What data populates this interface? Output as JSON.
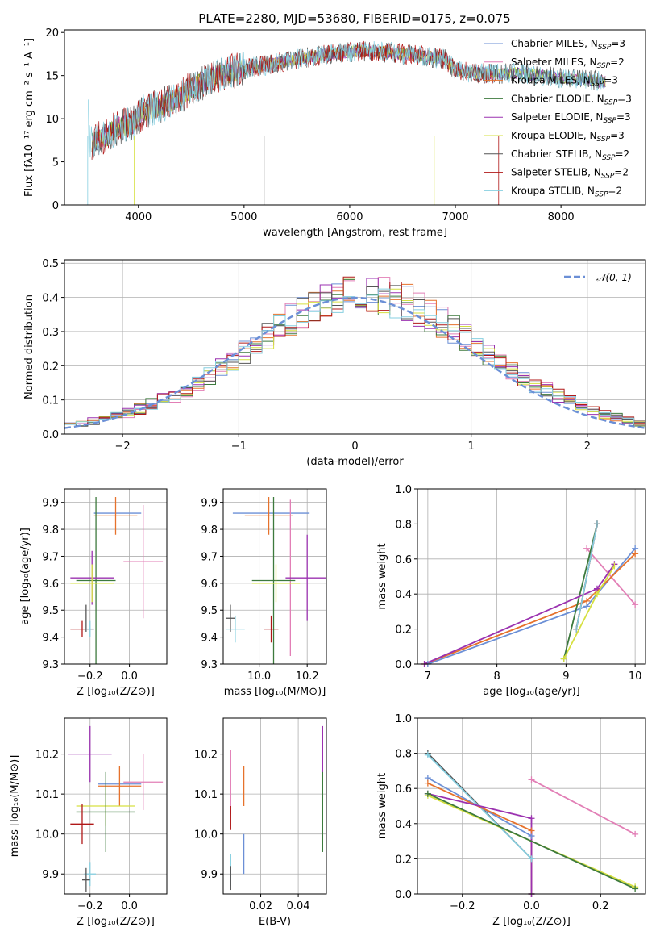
{
  "title": "PLATE=2280, MJD=53680, FIBERID=0175, z=0.075",
  "colors": {
    "Chabrier MILES": "#6b8fd6",
    "Salpeter MILES": "#e27fb6",
    "Kroupa MILES": "#e6722c",
    "Chabrier ELODIE": "#3d7a3d",
    "Salpeter ELODIE": "#9b32b0",
    "Kroupa ELODIE": "#d6e040",
    "Chabrier STELIB": "#555555",
    "Salpeter STELIB": "#b01818",
    "Kroupa STELIB": "#86cfe0",
    "gauss": "#6b8fd6",
    "grid": "#b0b0b0"
  },
  "legend": {
    "entries": [
      {
        "pre": "Chabrier MILES, N",
        "sub": "SSP",
        "post": "=3",
        "color_key": "Chabrier MILES"
      },
      {
        "pre": "Salpeter MILES, N",
        "sub": "SSP",
        "post": "=2",
        "color_key": "Salpeter MILES"
      },
      {
        "pre": "Kroupa MILES, N",
        "sub": "SSP",
        "post": "=3",
        "color_key": "Kroupa MILES"
      },
      {
        "pre": "Chabrier ELODIE, N",
        "sub": "SSP",
        "post": "=3",
        "color_key": "Chabrier ELODIE"
      },
      {
        "pre": "Salpeter ELODIE, N",
        "sub": "SSP",
        "post": "=3",
        "color_key": "Salpeter ELODIE"
      },
      {
        "pre": "Kroupa ELODIE, N",
        "sub": "SSP",
        "post": "=3",
        "color_key": "Kroupa ELODIE"
      },
      {
        "pre": "Chabrier STELIB, N",
        "sub": "SSP",
        "post": "=2",
        "color_key": "Chabrier STELIB"
      },
      {
        "pre": "Salpeter STELIB, N",
        "sub": "SSP",
        "post": "=2",
        "color_key": "Salpeter STELIB"
      },
      {
        "pre": "Kroupa STELIB, N",
        "sub": "SSP",
        "post": "=2",
        "color_key": "Kroupa STELIB"
      }
    ],
    "gauss_label": "𝒩(0, 1)"
  },
  "chart_data": [
    {
      "id": "spectrum",
      "type": "line",
      "xlabel": "wavelength [Angstrom, rest frame]",
      "ylabel": "Flux [fλ10⁻¹⁷ erg cm⁻² s⁻¹ A⁻¹]",
      "xlim": [
        3300,
        8800
      ],
      "ylim": [
        0,
        20.3
      ],
      "xticks": [
        4000,
        5000,
        6000,
        7000,
        8000
      ],
      "yticks": [
        0,
        5,
        10,
        15,
        20
      ],
      "grid": false,
      "legend_position": "upper right",
      "spectrum_shape": [
        [
          3530,
          7.2
        ],
        [
          3700,
          8.0
        ],
        [
          3800,
          9.0
        ],
        [
          3950,
          9.5
        ],
        [
          4050,
          10.8
        ],
        [
          4200,
          11.5
        ],
        [
          4400,
          12.5
        ],
        [
          4500,
          13.5
        ],
        [
          4700,
          14.8
        ],
        [
          4900,
          15.5
        ],
        [
          5100,
          16.0
        ],
        [
          5300,
          16.4
        ],
        [
          5500,
          16.9
        ],
        [
          5700,
          17.3
        ],
        [
          5900,
          17.6
        ],
        [
          6100,
          17.8
        ],
        [
          6300,
          17.8
        ],
        [
          6500,
          17.5
        ],
        [
          6700,
          17.3
        ],
        [
          6900,
          16.9
        ],
        [
          7000,
          15.6
        ],
        [
          7200,
          15.3
        ],
        [
          7400,
          15.2
        ],
        [
          7600,
          15.3
        ],
        [
          7800,
          15.0
        ],
        [
          8000,
          14.7
        ],
        [
          8200,
          14.5
        ],
        [
          8400,
          14.3
        ],
        [
          8420,
          14.3
        ]
      ]
    },
    {
      "id": "residuals",
      "type": "histogram",
      "xlabel": "(data-model)/error",
      "ylabel": "Normed distribution",
      "xlim": [
        -2.5,
        2.5
      ],
      "ylim": [
        0,
        0.51
      ],
      "xticks": [
        -2,
        -1,
        0,
        1,
        2
      ],
      "yticks": [
        0.0,
        0.1,
        0.2,
        0.3,
        0.4,
        0.5
      ],
      "grid": true,
      "gaussian": {
        "mu": 0,
        "sigma": 1,
        "style": "dashed",
        "label_ref": "legend.gauss_label"
      }
    },
    {
      "id": "age-vs-Z",
      "type": "errorbar",
      "xlabel": "Z [log₁₀(Z/Z⊙)]",
      "ylabel": "age  [log₁₀(age/yr)]",
      "xlim": [
        -0.33,
        0.19
      ],
      "ylim": [
        9.3,
        9.95
      ],
      "xticks": [
        -0.2,
        0.0
      ],
      "yticks": [
        9.3,
        9.4,
        9.5,
        9.6,
        9.7,
        9.8,
        9.9
      ],
      "grid": true,
      "points": [
        {
          "key": "Chabrier MILES",
          "x": -0.06,
          "xerr": 0.12,
          "y": 9.86,
          "yerr": 0.0
        },
        {
          "key": "Kroupa MILES",
          "x": -0.07,
          "xerr": 0.11,
          "y": 9.85,
          "yerr": 0.07
        },
        {
          "key": "Salpeter MILES",
          "x": 0.07,
          "xerr": 0.1,
          "y": 9.68,
          "yerr": 0.21
        },
        {
          "key": "Chabrier ELODIE",
          "x": -0.17,
          "xerr": 0.1,
          "y": 9.61,
          "yerr": 0.31
        },
        {
          "key": "Salpeter ELODIE",
          "x": -0.19,
          "xerr": 0.11,
          "y": 9.62,
          "yerr": 0.1
        },
        {
          "key": "Kroupa ELODIE",
          "x": -0.19,
          "xerr": 0.11,
          "y": 9.6,
          "yerr": 0.07
        },
        {
          "key": "Salpeter STELIB",
          "x": -0.24,
          "xerr": 0.06,
          "y": 9.43,
          "yerr": 0.03
        },
        {
          "key": "Chabrier STELIB",
          "x": -0.22,
          "xerr": 0.0,
          "y": 9.47,
          "yerr": 0.05
        },
        {
          "key": "Kroupa STELIB",
          "x": -0.2,
          "xerr": 0.02,
          "y": 9.43,
          "yerr": 0.03
        }
      ]
    },
    {
      "id": "age-vs-mass",
      "type": "errorbar",
      "xlabel": "mass [log₁₀(M/M⊙)]",
      "ylabel": "",
      "xlim": [
        9.85,
        10.28
      ],
      "ylim": [
        9.3,
        9.95
      ],
      "xticks": [
        10.0,
        10.2
      ],
      "yticks": [
        9.3,
        9.4,
        9.5,
        9.6,
        9.7,
        9.8,
        9.9
      ],
      "grid": true,
      "points": [
        {
          "key": "Chabrier MILES",
          "x": 10.05,
          "xerr": 0.16,
          "y": 9.86,
          "yerr": 0.0
        },
        {
          "key": "Kroupa MILES",
          "x": 10.04,
          "xerr": 0.1,
          "y": 9.85,
          "yerr": 0.07
        },
        {
          "key": "Salpeter MILES",
          "x": 10.13,
          "xerr": 0.0,
          "y": 9.62,
          "yerr": 0.29
        },
        {
          "key": "Chabrier ELODIE",
          "x": 10.06,
          "xerr": 0.09,
          "y": 9.61,
          "yerr": 0.31
        },
        {
          "key": "Salpeter ELODIE",
          "x": 10.2,
          "xerr": 0.09,
          "y": 9.62,
          "yerr": 0.16
        },
        {
          "key": "Kroupa ELODIE",
          "x": 10.07,
          "xerr": 0.1,
          "y": 9.6,
          "yerr": 0.07
        },
        {
          "key": "Salpeter STELIB",
          "x": 10.05,
          "xerr": 0.03,
          "y": 9.43,
          "yerr": 0.05
        },
        {
          "key": "Chabrier STELIB",
          "x": 9.88,
          "xerr": 0.02,
          "y": 9.47,
          "yerr": 0.05
        },
        {
          "key": "Kroupa STELIB",
          "x": 9.9,
          "xerr": 0.04,
          "y": 9.43,
          "yerr": 0.05
        }
      ]
    },
    {
      "id": "weight-vs-age",
      "type": "line",
      "xlabel": "age  [log₁₀(age/yr)]",
      "ylabel": "mass weight",
      "xlim": [
        6.85,
        10.15
      ],
      "ylim": [
        0,
        1.0
      ],
      "xticks": [
        7,
        8,
        9,
        10
      ],
      "yticks": [
        0.0,
        0.2,
        0.4,
        0.6,
        0.8,
        1.0
      ],
      "grid": true,
      "series": [
        {
          "key": "Chabrier MILES",
          "x": [
            7.0,
            9.3,
            10.0
          ],
          "y": [
            0.0,
            0.33,
            0.66
          ]
        },
        {
          "key": "Salpeter MILES",
          "x": [
            9.3,
            10.0
          ],
          "y": [
            0.66,
            0.34
          ]
        },
        {
          "key": "Kroupa MILES",
          "x": [
            6.95,
            9.3,
            10.0
          ],
          "y": [
            0.0,
            0.36,
            0.63
          ]
        },
        {
          "key": "Chabrier ELODIE",
          "x": [
            8.97,
            9.45
          ],
          "y": [
            0.03,
            0.8
          ]
        },
        {
          "key": "Salpeter ELODIE",
          "x": [
            6.95,
            9.45,
            9.7
          ],
          "y": [
            0.0,
            0.43,
            0.57
          ]
        },
        {
          "key": "Kroupa ELODIE",
          "x": [
            8.97,
            9.45,
            9.7
          ],
          "y": [
            0.03,
            0.4,
            0.56
          ]
        },
        {
          "key": "Chabrier STELIB",
          "x": [
            9.15,
            9.45
          ],
          "y": [
            0.2,
            0.8
          ]
        },
        {
          "key": "Salpeter STELIB",
          "x": [
            9.15,
            9.45
          ],
          "y": [
            0.2,
            0.8
          ]
        },
        {
          "key": "Kroupa STELIB",
          "x": [
            9.15,
            9.45
          ],
          "y": [
            0.2,
            0.8
          ]
        }
      ]
    },
    {
      "id": "mass-vs-Z",
      "type": "errorbar",
      "xlabel": "Z [log₁₀(Z/Z⊙)]",
      "ylabel": "mass [log₁₀(M/M⊙)]",
      "xlim": [
        -0.33,
        0.19
      ],
      "ylim": [
        9.85,
        10.29
      ],
      "xticks": [
        -0.2,
        0.0
      ],
      "yticks": [
        9.9,
        10.0,
        10.1,
        10.2
      ],
      "grid": true,
      "points": [
        {
          "key": "Salpeter ELODIE",
          "x": -0.2,
          "xerr": 0.11,
          "y": 10.2,
          "yerr": 0.07
        },
        {
          "key": "Salpeter MILES",
          "x": 0.07,
          "xerr": 0.1,
          "y": 10.13,
          "yerr": 0.07
        },
        {
          "key": "Chabrier MILES",
          "x": -0.05,
          "xerr": 0.11,
          "y": 10.125,
          "yerr": 0.0
        },
        {
          "key": "Kroupa MILES",
          "x": -0.05,
          "xerr": 0.11,
          "y": 10.12,
          "yerr": 0.05
        },
        {
          "key": "Kroupa ELODIE",
          "x": -0.12,
          "xerr": 0.15,
          "y": 10.07,
          "yerr": 0.05
        },
        {
          "key": "Chabrier ELODIE",
          "x": -0.12,
          "xerr": 0.15,
          "y": 10.055,
          "yerr": 0.1
        },
        {
          "key": "Salpeter STELIB",
          "x": -0.24,
          "xerr": 0.06,
          "y": 10.025,
          "yerr": 0.05
        },
        {
          "key": "Kroupa STELIB",
          "x": -0.2,
          "xerr": 0.03,
          "y": 9.9,
          "yerr": 0.03
        },
        {
          "key": "Chabrier STELIB",
          "x": -0.22,
          "xerr": 0.02,
          "y": 9.885,
          "yerr": 0.03
        }
      ]
    },
    {
      "id": "mass-vs-EBV",
      "type": "errorbar",
      "xlabel": "E(B-V)",
      "ylabel": "",
      "xlim": [
        0.0,
        0.055
      ],
      "ylim": [
        9.85,
        10.29
      ],
      "xticks": [
        0.02,
        0.04
      ],
      "yticks": [
        9.9,
        10.0,
        10.1,
        10.2
      ],
      "grid": true,
      "points": [
        {
          "key": "Salpeter ELODIE",
          "x": 0.053,
          "xerr": 0.0,
          "y": 10.2,
          "yerr": 0.07
        },
        {
          "key": "Salpeter MILES",
          "x": 0.004,
          "xerr": 0.0,
          "y": 10.13,
          "yerr": 0.08
        },
        {
          "key": "Kroupa MILES",
          "x": 0.011,
          "xerr": 0.0,
          "y": 10.12,
          "yerr": 0.05
        },
        {
          "key": "Kroupa ELODIE",
          "x": 0.053,
          "xerr": 0.0,
          "y": 10.07,
          "yerr": 0.06
        },
        {
          "key": "Chabrier ELODIE",
          "x": 0.053,
          "xerr": 0.0,
          "y": 10.055,
          "yerr": 0.1
        },
        {
          "key": "Salpeter STELIB",
          "x": 0.004,
          "xerr": 0.0,
          "y": 10.04,
          "yerr": 0.03
        },
        {
          "key": "Chabrier MILES",
          "x": 0.011,
          "xerr": 0.0,
          "y": 9.95,
          "yerr": 0.05
        },
        {
          "key": "Kroupa STELIB",
          "x": 0.004,
          "xerr": 0.0,
          "y": 9.91,
          "yerr": 0.04
        },
        {
          "key": "Chabrier STELIB",
          "x": 0.004,
          "xerr": 0.0,
          "y": 9.89,
          "yerr": 0.03
        }
      ]
    },
    {
      "id": "weight-vs-Z",
      "type": "line",
      "xlabel": "Z [log₁₀(Z/Z⊙)]",
      "ylabel": "mass weight",
      "xlim": [
        -0.33,
        0.33
      ],
      "ylim": [
        0,
        1.0
      ],
      "xticks": [
        -0.2,
        0.0,
        0.2
      ],
      "yticks": [
        0.0,
        0.2,
        0.4,
        0.6,
        0.8,
        1.0
      ],
      "grid": true,
      "series": [
        {
          "key": "Chabrier STELIB",
          "x": [
            -0.3,
            0.0,
            0.0
          ],
          "y": [
            0.8,
            0.2,
            0.0
          ]
        },
        {
          "key": "Kroupa STELIB",
          "x": [
            -0.3,
            0.0,
            0.0
          ],
          "y": [
            0.79,
            0.2,
            0.0
          ]
        },
        {
          "key": "Chabrier MILES",
          "x": [
            -0.3,
            0.0,
            0.0
          ],
          "y": [
            0.66,
            0.33,
            0.0
          ]
        },
        {
          "key": "Kroupa MILES",
          "x": [
            -0.3,
            0.0,
            0.0
          ],
          "y": [
            0.63,
            0.36,
            0.0
          ]
        },
        {
          "key": "Salpeter ELODIE",
          "x": [
            -0.3,
            0.0,
            0.0
          ],
          "y": [
            0.57,
            0.43,
            0.0
          ]
        },
        {
          "key": "Kroupa ELODIE",
          "x": [
            -0.3,
            0.3
          ],
          "y": [
            0.56,
            0.04
          ]
        },
        {
          "key": "Chabrier ELODIE",
          "x": [
            -0.3,
            0.3
          ],
          "y": [
            0.57,
            0.03
          ]
        },
        {
          "key": "Salpeter MILES",
          "x": [
            0.0,
            0.3
          ],
          "y": [
            0.65,
            0.34
          ]
        }
      ]
    }
  ]
}
